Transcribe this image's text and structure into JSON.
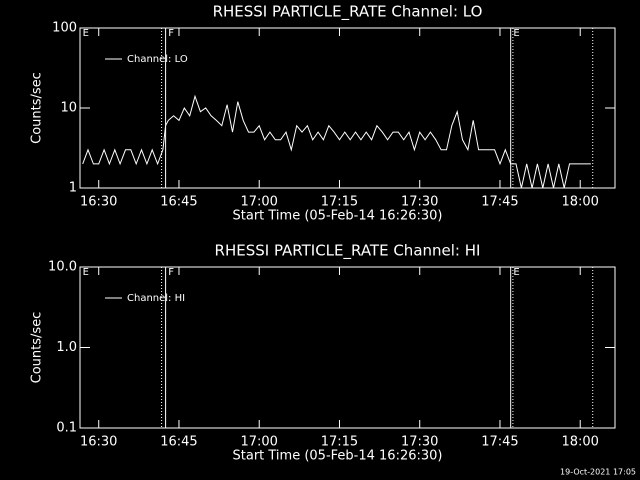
{
  "chart_data": [
    {
      "type": "line",
      "title": "RHESSI PARTICLE_RATE Channel: LO",
      "xlabel": "Start Time (05-Feb-14 16:26:30)",
      "ylabel": "Counts/sec",
      "log_y": true,
      "ylim": [
        1,
        100
      ],
      "yticks": [
        1,
        10,
        100
      ],
      "xlim": [
        "16:26:30",
        "18:06:30"
      ],
      "xticks": [
        "16:30",
        "16:45",
        "17:00",
        "17:15",
        "17:30",
        "17:45",
        "18:00"
      ],
      "legend": "upper left",
      "annotations": [
        {
          "time": "16:27:00",
          "label": "E"
        },
        {
          "time": "16:43:00",
          "label": "F"
        },
        {
          "time": "17:47:30",
          "label": "E"
        }
      ],
      "markers": [
        {
          "time": "16:41:45",
          "style": "dotted"
        },
        {
          "time": "16:42:30",
          "style": "solid"
        },
        {
          "time": "17:47:00",
          "style": "solid"
        },
        {
          "time": "17:47:25",
          "style": "dotted"
        },
        {
          "time": "18:02:20",
          "style": "dotted"
        }
      ],
      "x": [
        "16:27",
        "16:28",
        "16:29",
        "16:30",
        "16:31",
        "16:32",
        "16:33",
        "16:34",
        "16:35",
        "16:36",
        "16:37",
        "16:38",
        "16:39",
        "16:40",
        "16:41",
        "16:42",
        "16:42:30",
        "16:43",
        "16:44",
        "16:45",
        "16:46",
        "16:47",
        "16:48",
        "16:49",
        "16:50",
        "16:51",
        "16:52",
        "16:53",
        "16:54",
        "16:55",
        "16:56",
        "16:57",
        "16:58",
        "16:59",
        "17:00",
        "17:01",
        "17:02",
        "17:03",
        "17:04",
        "17:05",
        "17:06",
        "17:07",
        "17:08",
        "17:09",
        "17:10",
        "17:11",
        "17:12",
        "17:13",
        "17:14",
        "17:15",
        "17:16",
        "17:17",
        "17:18",
        "17:19",
        "17:20",
        "17:21",
        "17:22",
        "17:23",
        "17:24",
        "17:25",
        "17:26",
        "17:27",
        "17:28",
        "17:29",
        "17:30",
        "17:31",
        "17:32",
        "17:33",
        "17:34",
        "17:35",
        "17:36",
        "17:37",
        "17:38",
        "17:39",
        "17:40",
        "17:41",
        "17:42",
        "17:43",
        "17:44",
        "17:45",
        "17:46",
        "17:47",
        "17:48",
        "17:49",
        "17:50",
        "17:51",
        "17:52",
        "17:53",
        "17:54",
        "17:55",
        "17:56",
        "17:57",
        "17:58",
        "17:59",
        "18:00",
        "18:01",
        "18:02"
      ],
      "series": [
        {
          "name": "Channel: LO",
          "color": "#ffffff",
          "values": [
            2,
            3,
            2,
            2,
            3,
            2,
            3,
            2,
            3,
            3,
            2,
            3,
            2,
            3,
            2,
            3,
            6,
            7,
            8,
            7,
            10,
            8,
            14,
            9,
            10,
            8,
            7,
            6,
            11,
            5,
            12,
            7,
            5,
            5,
            6,
            4,
            5,
            4,
            4,
            5,
            3,
            6,
            5,
            6,
            4,
            5,
            4,
            6,
            5,
            4,
            5,
            4,
            5,
            4,
            5,
            4,
            6,
            5,
            4,
            5,
            5,
            4,
            5,
            3,
            5,
            4,
            5,
            4,
            3,
            3,
            6,
            9,
            4,
            3,
            7,
            3,
            3,
            3,
            3,
            2,
            3,
            2,
            2,
            1,
            2,
            1,
            2,
            1,
            2,
            1,
            2,
            1,
            2,
            2,
            2,
            2,
            2
          ]
        }
      ]
    },
    {
      "type": "line",
      "title": "RHESSI PARTICLE_RATE Channel: HI",
      "xlabel": "Start Time (05-Feb-14 16:26:30)",
      "ylabel": "Counts/sec",
      "log_y": true,
      "ylim": [
        0.1,
        10
      ],
      "yticks": [
        {
          "value": 0.1,
          "label": "0.1"
        },
        {
          "value": 1,
          "label": "1.0"
        },
        {
          "value": 10,
          "label": "10.0"
        }
      ],
      "xlim": [
        "16:26:30",
        "18:06:30"
      ],
      "xticks": [
        "16:30",
        "16:45",
        "17:00",
        "17:15",
        "17:30",
        "17:45",
        "18:00"
      ],
      "legend": "upper left",
      "annotations": [
        {
          "time": "16:27:00",
          "label": "E"
        },
        {
          "time": "16:43:00",
          "label": "F"
        },
        {
          "time": "17:47:30",
          "label": "E"
        }
      ],
      "markers": [
        {
          "time": "16:41:45",
          "style": "dotted"
        },
        {
          "time": "16:42:30",
          "style": "solid"
        },
        {
          "time": "17:47:00",
          "style": "solid"
        },
        {
          "time": "17:47:25",
          "style": "dotted"
        },
        {
          "time": "18:02:20",
          "style": "dotted"
        }
      ],
      "x": [],
      "series": [
        {
          "name": "Channel: HI",
          "color": "#ffffff",
          "values": []
        }
      ]
    }
  ],
  "footer": "19-Oct-2021 17:05"
}
